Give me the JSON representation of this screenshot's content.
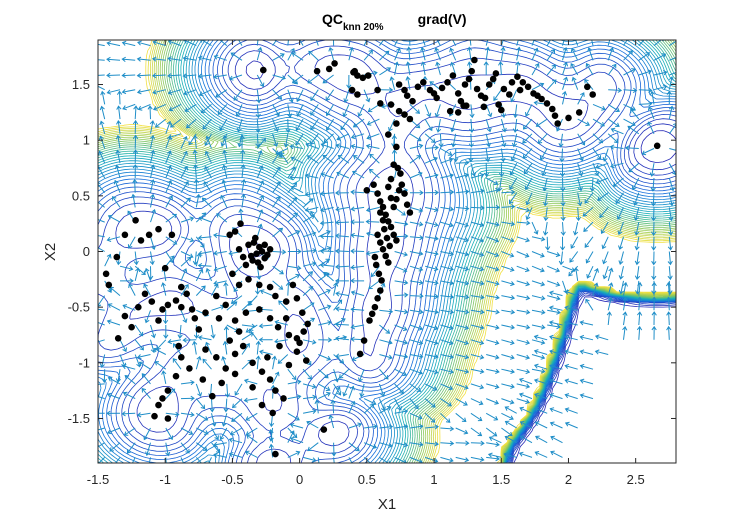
{
  "chart_data": {
    "type": "scatter",
    "title": {
      "main": "QC",
      "subscript": "knn 20%",
      "right": "grad(V)"
    },
    "xlabel": "X1",
    "ylabel": "X2",
    "xlim": [
      -1.5,
      2.8
    ],
    "ylim": [
      -1.9,
      1.9
    ],
    "xticks": [
      -1.5,
      -1,
      -0.5,
      0,
      0.5,
      1,
      1.5,
      2,
      2.5
    ],
    "xtick_labels": [
      "-1.5",
      "-1",
      "-0.5",
      "0",
      "0.5",
      "1",
      "1.5",
      "2",
      "2.5"
    ],
    "yticks": [
      1.5,
      1,
      0.5,
      0,
      -0.5,
      -1,
      -1.5
    ],
    "ytick_labels": [
      "1.5",
      "1",
      "0.5",
      "0",
      "-0.5",
      "-1",
      "-1.5"
    ],
    "grid": false,
    "layers": {
      "contour": "potential V contour lines (parula colormap, yellow = high)",
      "quiver": "gradient field grad(V) arrows",
      "points": "data samples (black filled circles)"
    },
    "colors": {
      "points": "#000000",
      "arrows": "#1f8ec8",
      "contour_low": "#2a1fb0",
      "contour_mid": "#18b0b8",
      "contour_high": "#f2e040",
      "axes": "#262626"
    },
    "points": [
      [
        -0.27,
        1.63
      ],
      [
        0.13,
        1.62
      ],
      [
        0.22,
        1.64
      ],
      [
        0.26,
        1.69
      ],
      [
        0.41,
        1.62
      ],
      [
        0.4,
        1.61
      ],
      [
        0.43,
        1.58
      ],
      [
        0.47,
        1.56
      ],
      [
        0.51,
        1.58
      ],
      [
        0.39,
        1.45
      ],
      [
        0.43,
        1.41
      ],
      [
        0.58,
        1.45
      ],
      [
        0.6,
        1.33
      ],
      [
        0.68,
        1.32
      ],
      [
        0.74,
        1.26
      ],
      [
        0.78,
        1.23
      ],
      [
        0.82,
        1.19
      ],
      [
        0.72,
        1.15
      ],
      [
        0.66,
        1.05
      ],
      [
        0.72,
        0.94
      ],
      [
        0.74,
        1.5
      ],
      [
        0.78,
        1.45
      ],
      [
        0.8,
        1.4
      ],
      [
        0.84,
        1.35
      ],
      [
        0.88,
        1.48
      ],
      [
        0.92,
        1.52
      ],
      [
        0.97,
        1.45
      ],
      [
        1.0,
        1.42
      ],
      [
        1.02,
        1.38
      ],
      [
        1.06,
        1.47
      ],
      [
        1.1,
        1.52
      ],
      [
        1.14,
        1.58
      ],
      [
        1.18,
        1.42
      ],
      [
        1.2,
        1.35
      ],
      [
        1.23,
        1.5
      ],
      [
        1.26,
        1.55
      ],
      [
        1.28,
        1.62
      ],
      [
        1.3,
        1.72
      ],
      [
        1.32,
        1.46
      ],
      [
        1.35,
        1.4
      ],
      [
        1.38,
        1.38
      ],
      [
        1.41,
        1.5
      ],
      [
        1.44,
        1.55
      ],
      [
        1.46,
        1.6
      ],
      [
        1.48,
        1.32
      ],
      [
        1.5,
        1.27
      ],
      [
        1.52,
        1.46
      ],
      [
        1.56,
        1.41
      ],
      [
        1.58,
        1.52
      ],
      [
        1.62,
        1.57
      ],
      [
        1.64,
        1.45
      ],
      [
        1.66,
        1.52
      ],
      [
        1.7,
        1.48
      ],
      [
        1.74,
        1.42
      ],
      [
        1.77,
        1.4
      ],
      [
        1.8,
        1.37
      ],
      [
        1.84,
        1.33
      ],
      [
        1.88,
        1.28
      ],
      [
        1.9,
        1.22
      ],
      [
        1.92,
        1.15
      ],
      [
        2.0,
        1.2
      ],
      [
        2.08,
        1.25
      ],
      [
        2.14,
        1.48
      ],
      [
        2.18,
        1.41
      ],
      [
        1.12,
        1.26
      ],
      [
        1.18,
        1.25
      ],
      [
        1.22,
        1.31
      ],
      [
        1.37,
        1.3
      ],
      [
        1.24,
        1.31
      ],
      [
        2.66,
        0.95
      ],
      [
        0.55,
        0.6
      ],
      [
        0.58,
        0.52
      ],
      [
        0.6,
        0.45
      ],
      [
        0.62,
        0.4
      ],
      [
        0.64,
        0.33
      ],
      [
        0.66,
        0.27
      ],
      [
        0.68,
        0.22
      ],
      [
        0.7,
        0.15
      ],
      [
        0.72,
        0.1
      ],
      [
        0.6,
        0.35
      ],
      [
        0.62,
        0.28
      ],
      [
        0.63,
        0.2
      ],
      [
        0.65,
        0.12
      ],
      [
        0.67,
        0.05
      ],
      [
        0.58,
        0.15
      ],
      [
        0.6,
        0.08
      ],
      [
        0.62,
        0.02
      ],
      [
        0.64,
        -0.04
      ],
      [
        0.66,
        -0.1
      ],
      [
        0.7,
        0.4
      ],
      [
        0.72,
        0.47
      ],
      [
        0.74,
        0.55
      ],
      [
        0.76,
        0.6
      ],
      [
        0.75,
        0.7
      ],
      [
        0.73,
        0.75
      ],
      [
        0.7,
        0.78
      ],
      [
        0.68,
        0.65
      ],
      [
        0.66,
        0.58
      ],
      [
        0.68,
        0.48
      ],
      [
        0.56,
        -0.05
      ],
      [
        0.57,
        -0.12
      ],
      [
        0.59,
        -0.2
      ],
      [
        0.61,
        -0.26
      ],
      [
        0.6,
        -0.35
      ],
      [
        0.58,
        -0.42
      ],
      [
        0.56,
        -0.5
      ],
      [
        0.54,
        -0.56
      ],
      [
        0.52,
        -0.62
      ],
      [
        0.48,
        -0.8
      ],
      [
        0.45,
        -0.92
      ],
      [
        0.5,
        0.55
      ],
      [
        0.78,
        0.52
      ],
      [
        0.8,
        0.42
      ],
      [
        0.82,
        0.35
      ],
      [
        -0.38,
        0.06
      ],
      [
        -0.34,
        0.08
      ],
      [
        -0.3,
        0.04
      ],
      [
        -0.28,
        0.0
      ],
      [
        -0.32,
        -0.02
      ],
      [
        -0.36,
        -0.04
      ],
      [
        -0.26,
        0.06
      ],
      [
        -0.24,
        -0.03
      ],
      [
        -0.35,
        -0.08
      ],
      [
        -0.4,
        -0.12
      ],
      [
        -0.42,
        -0.05
      ],
      [
        -0.45,
        0.02
      ],
      [
        -0.31,
        -0.1
      ],
      [
        -0.29,
        -0.14
      ],
      [
        -0.22,
        0.02
      ],
      [
        -0.26,
        -0.06
      ],
      [
        -0.33,
        0.12
      ],
      [
        -0.44,
        0.25
      ],
      [
        -0.48,
        0.18
      ],
      [
        -0.52,
        0.15
      ],
      [
        -0.5,
        -0.2
      ],
      [
        -0.45,
        -0.3
      ],
      [
        -0.38,
        -0.25
      ],
      [
        -0.3,
        -0.3
      ],
      [
        -0.22,
        -0.32
      ],
      [
        -0.18,
        -0.4
      ],
      [
        -0.1,
        -0.45
      ],
      [
        -0.05,
        -0.3
      ],
      [
        -0.02,
        -0.42
      ],
      [
        0.02,
        -0.55
      ],
      [
        0.06,
        -0.65
      ],
      [
        0.03,
        -0.72
      ],
      [
        0.0,
        -0.82
      ],
      [
        -0.02,
        -0.9
      ],
      [
        -0.08,
        -0.75
      ],
      [
        -0.16,
        -0.68
      ],
      [
        -0.22,
        -0.6
      ],
      [
        -0.3,
        -0.52
      ],
      [
        -0.4,
        -0.55
      ],
      [
        -0.48,
        -0.62
      ],
      [
        -0.55,
        -0.48
      ],
      [
        -0.62,
        -0.4
      ],
      [
        -0.7,
        -0.55
      ],
      [
        -0.78,
        -0.6
      ],
      [
        -0.8,
        -0.52
      ],
      [
        -0.88,
        -0.5
      ],
      [
        -0.92,
        -0.44
      ],
      [
        -0.98,
        -0.48
      ],
      [
        -1.02,
        -0.52
      ],
      [
        -1.05,
        -0.62
      ],
      [
        -1.1,
        -0.45
      ],
      [
        -1.15,
        -0.38
      ],
      [
        -1.2,
        -0.5
      ],
      [
        -1.25,
        -0.68
      ],
      [
        -1.35,
        -0.78
      ],
      [
        -1.42,
        -0.3
      ],
      [
        -1.44,
        -0.2
      ],
      [
        -1.36,
        -0.05
      ],
      [
        -1.3,
        0.15
      ],
      [
        -1.22,
        0.28
      ],
      [
        -1.18,
        0.1
      ],
      [
        -1.12,
        0.15
      ],
      [
        -1.05,
        0.2
      ],
      [
        -1.0,
        -0.15
      ],
      [
        -0.88,
        -0.32
      ],
      [
        -0.84,
        -0.38
      ],
      [
        -0.75,
        -0.7
      ],
      [
        -0.7,
        -0.88
      ],
      [
        -0.62,
        -0.95
      ],
      [
        -0.55,
        -1.05
      ],
      [
        -0.48,
        -0.92
      ],
      [
        -0.42,
        -0.85
      ],
      [
        -0.35,
        -1.0
      ],
      [
        -0.28,
        -1.08
      ],
      [
        -0.22,
        -1.15
      ],
      [
        -0.18,
        -1.25
      ],
      [
        -0.12,
        -1.32
      ],
      [
        -0.2,
        -1.45
      ],
      [
        -0.28,
        -1.38
      ],
      [
        -0.35,
        -1.22
      ],
      [
        -0.48,
        -1.1
      ],
      [
        -0.58,
        -1.18
      ],
      [
        -0.65,
        -1.3
      ],
      [
        -0.72,
        -1.15
      ],
      [
        -0.82,
        -1.05
      ],
      [
        -0.88,
        -0.95
      ],
      [
        -0.92,
        -1.12
      ],
      [
        -0.98,
        -1.25
      ],
      [
        -1.02,
        -1.32
      ],
      [
        -1.05,
        -1.38
      ],
      [
        -1.08,
        -1.48
      ],
      [
        -0.98,
        -1.5
      ],
      [
        -0.9,
        -0.85
      ],
      [
        -0.18,
        -1.82
      ],
      [
        0.18,
        -1.6
      ],
      [
        -0.02,
        -0.78
      ],
      [
        -0.1,
        -0.6
      ],
      [
        -0.45,
        -0.72
      ],
      [
        -0.52,
        -0.8
      ],
      [
        -0.24,
        -0.95
      ],
      [
        -0.15,
        -0.85
      ],
      [
        -0.08,
        -1.02
      ],
      [
        0.05,
        -0.98
      ],
      [
        -0.6,
        -0.6
      ],
      [
        -1.3,
        -0.58
      ],
      [
        -0.95,
        0.15
      ]
    ]
  }
}
